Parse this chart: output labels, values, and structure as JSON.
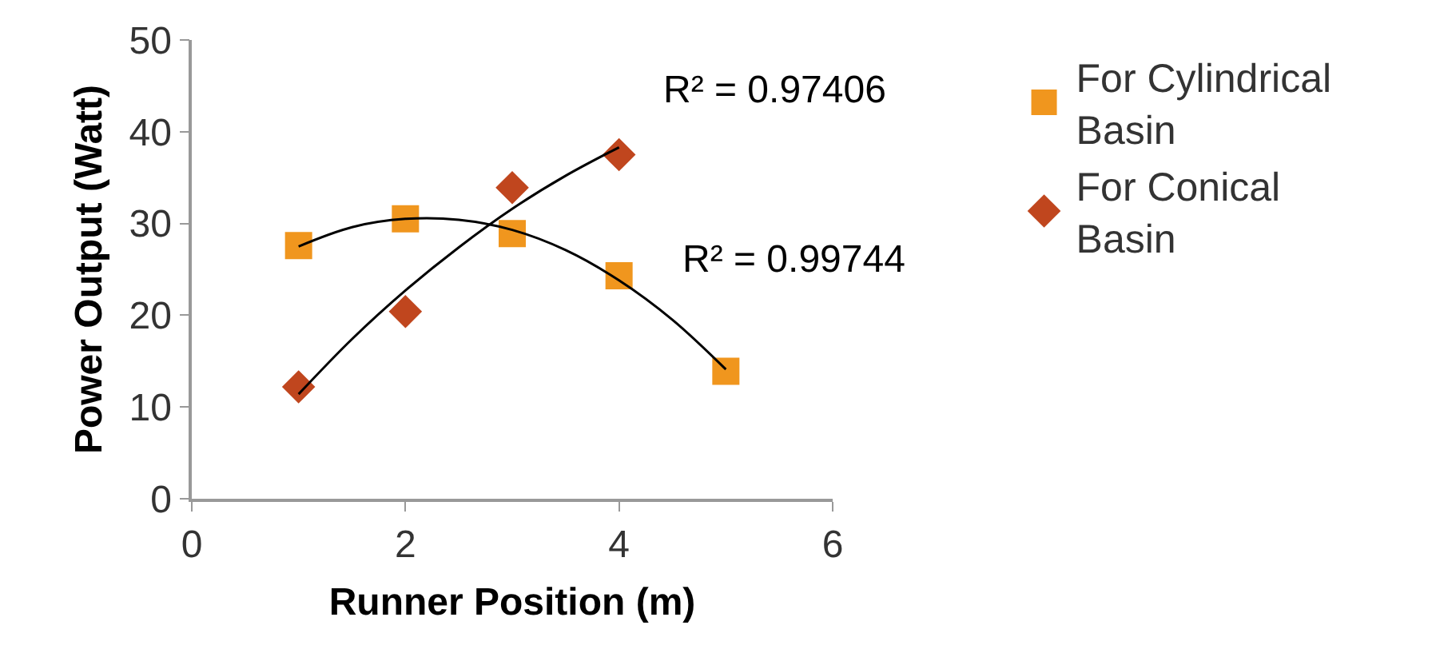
{
  "chart_data": {
    "type": "scatter",
    "xlabel": "Runner Position (m)",
    "ylabel": "Power Output (Watt)",
    "xlim": [
      0,
      6
    ],
    "xticks": [
      0,
      2,
      4,
      6
    ],
    "ylim": [
      0,
      50
    ],
    "yticks": [
      0,
      10,
      20,
      30,
      40,
      50
    ],
    "grid": false,
    "legend": "right",
    "series": [
      {
        "name": "For Cylindrical Basin",
        "color": "#f0961e",
        "marker": "square",
        "x": [
          1,
          2,
          3,
          4,
          5
        ],
        "values": [
          27.6,
          30.5,
          28.9,
          24.3,
          13.9
        ]
      },
      {
        "name": "For Conical Basin",
        "color": "#c0461e",
        "marker": "diamond",
        "x": [
          1,
          2,
          3,
          4
        ],
        "values": [
          12.2,
          20.4,
          33.9,
          37.5
        ]
      },
      {
        "type": "line",
        "color": "#000000",
        "marker": "none",
        "x": [
          1,
          1.5,
          2,
          2.5,
          3,
          3.5,
          4,
          4.5,
          5
        ],
        "values": [
          27.5,
          29.6,
          30.5,
          30.4,
          29.3,
          27.1,
          23.8,
          19.5,
          14.1
        ]
      },
      {
        "type": "line",
        "color": "#000000",
        "marker": "none",
        "x": [
          1,
          1.5,
          2,
          2.5,
          3,
          3.5,
          4
        ],
        "values": [
          11.4,
          17.4,
          22.7,
          27.4,
          31.6,
          35.2,
          38.3
        ]
      }
    ],
    "annotations": [
      "R² = 0.97406",
      "R² = 0.99744"
    ]
  }
}
